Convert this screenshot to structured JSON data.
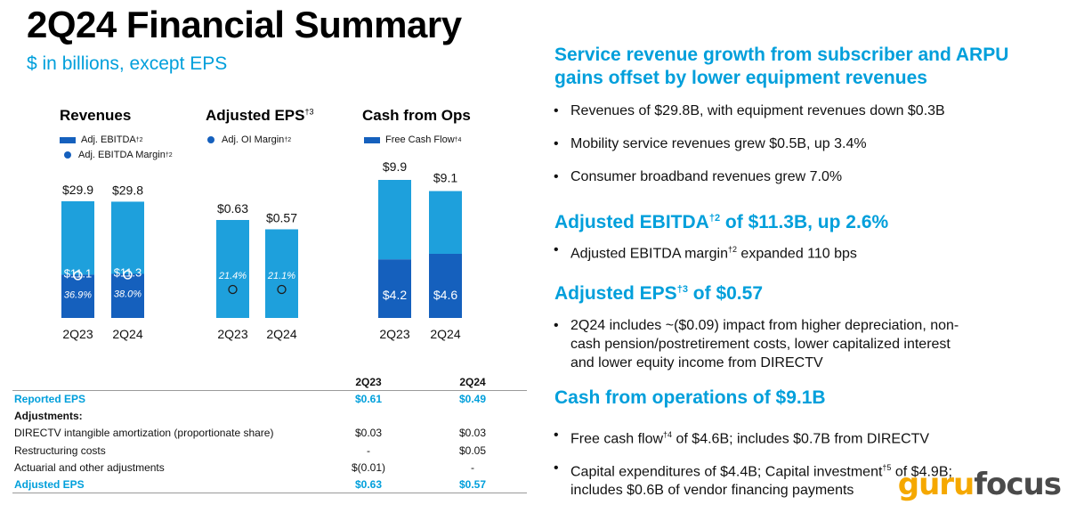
{
  "page": {
    "title": "2Q24 Financial Summary",
    "subtitle": "$ in billions, except EPS"
  },
  "colors": {
    "light_blue": "#1ea0dc",
    "dark_blue": "#1560bd",
    "accent": "#009fdb"
  },
  "chart_data": [
    {
      "type": "bar",
      "title": "Revenues",
      "legend": [
        {
          "label": "Adj. EBITDA",
          "sup": "†2",
          "marker": "bar"
        },
        {
          "label": "Adj. EBITDA Margin",
          "sup": "†2",
          "marker": "dot"
        }
      ],
      "categories": [
        "2Q23",
        "2Q24"
      ],
      "series": [
        {
          "name": "Revenues",
          "values": [
            29.9,
            29.8
          ],
          "labels": [
            "$29.9",
            "$29.8"
          ]
        },
        {
          "name": "Adj. EBITDA",
          "values": [
            11.1,
            11.3
          ],
          "labels": [
            "$11.1",
            "$11.3"
          ]
        },
        {
          "name": "Adj. EBITDA Margin",
          "values": [
            36.9,
            38.0
          ],
          "labels": [
            "36.9%",
            "38.0%"
          ]
        }
      ]
    },
    {
      "type": "bar",
      "title": "Adjusted EPS",
      "title_sup": "†3",
      "legend": [
        {
          "label": "Adj. OI Margin",
          "sup": "†2",
          "marker": "dot"
        }
      ],
      "categories": [
        "2Q23",
        "2Q24"
      ],
      "series": [
        {
          "name": "Adjusted EPS",
          "values": [
            0.63,
            0.57
          ],
          "labels": [
            "$0.63",
            "$0.57"
          ]
        },
        {
          "name": "Adj. OI Margin",
          "values": [
            21.4,
            21.1
          ],
          "labels": [
            "21.4%",
            "21.1%"
          ]
        }
      ]
    },
    {
      "type": "bar",
      "title": "Cash from Ops",
      "legend": [
        {
          "label": "Free Cash Flow",
          "sup": "†4",
          "marker": "bar"
        }
      ],
      "categories": [
        "2Q23",
        "2Q24"
      ],
      "series": [
        {
          "name": "Cash from Ops",
          "values": [
            9.9,
            9.1
          ],
          "labels": [
            "$9.9",
            "$9.1"
          ]
        },
        {
          "name": "Free Cash Flow",
          "values": [
            4.2,
            4.6
          ],
          "labels": [
            "$4.2",
            "$4.6"
          ]
        }
      ]
    }
  ],
  "table": {
    "columns": [
      "2Q23",
      "2Q24"
    ],
    "rows": [
      {
        "label": "Reported EPS",
        "v1": "$0.61",
        "v2": "$0.49",
        "style": "blue"
      },
      {
        "label": "Adjustments:",
        "v1": "",
        "v2": "",
        "style": "bold"
      },
      {
        "label": "DIRECTV intangible amortization (proportionate share)",
        "v1": "$0.03",
        "v2": "$0.03",
        "style": "normal"
      },
      {
        "label": "Restructuring costs",
        "v1": "-",
        "v2": "$0.05",
        "style": "normal"
      },
      {
        "label": "Actuarial and other adjustments",
        "v1": "$(0.01)",
        "v2": "-",
        "style": "normal"
      },
      {
        "label": "Adjusted EPS",
        "v1": "$0.63",
        "v2": "$0.57",
        "style": "blue"
      }
    ]
  },
  "highlights": [
    {
      "heading_lines": [
        "Service revenue growth from subscriber and ARPU",
        "gains offset by lower equipment revenues"
      ],
      "bullets": [
        {
          "text": "Revenues of $29.8B, with equipment revenues down $0.3B"
        },
        {
          "text": "Mobility service revenues grew $0.5B, up 3.4%"
        },
        {
          "text": "Consumer broadband revenues grew 7.0%"
        }
      ]
    },
    {
      "heading_pre": "Adjusted EBITDA",
      "heading_sup": "†2",
      "heading_post": " of $11.3B, up 2.6%",
      "bullets": [
        {
          "pre": "Adjusted EBITDA margin",
          "sup": "†2",
          "post": " expanded 110 bps"
        }
      ]
    },
    {
      "heading_pre": "Adjusted EPS",
      "heading_sup": "†3",
      "heading_post": " of $0.57",
      "bullets": [
        {
          "lines": [
            "2Q24 includes ~($0.09) impact from higher depreciation, non-",
            "cash pension/postretirement costs, lower capitalized interest",
            "and lower equity income from DIRECTV"
          ]
        }
      ]
    },
    {
      "heading": "Cash from operations of $9.1B",
      "bullets": [
        {
          "pre": "Free cash flow",
          "sup": "†4",
          "post": " of $4.6B; includes $0.7B from DIRECTV"
        },
        {
          "pre": "Capital expenditures of $4.4B; Capital investment",
          "sup": "†5",
          "post": " of $4.9B;",
          "line2": "includes $0.6B of vendor financing payments"
        }
      ]
    }
  ],
  "watermark": {
    "part1": "guru",
    "part2": "focus"
  }
}
